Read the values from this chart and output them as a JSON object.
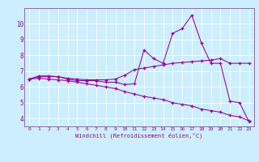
{
  "xlabel": "Windchill (Refroidissement éolien,°C)",
  "bg_color": "#cceeff",
  "line_color": "#990099",
  "grid_color": "#ffffff",
  "spine_color": "#9966aa",
  "yticks": [
    4,
    5,
    6,
    7,
    8,
    9,
    10
  ],
  "xticks": [
    0,
    1,
    2,
    3,
    4,
    5,
    6,
    7,
    8,
    9,
    10,
    11,
    12,
    13,
    14,
    15,
    16,
    17,
    18,
    19,
    20,
    21,
    22,
    23
  ],
  "ylim": [
    3.5,
    11.0
  ],
  "xlim": [
    -0.5,
    23.5
  ],
  "series1": [
    6.5,
    6.7,
    6.7,
    6.65,
    6.5,
    6.4,
    6.4,
    6.4,
    6.3,
    6.3,
    6.15,
    6.2,
    8.35,
    7.8,
    7.5,
    9.4,
    9.7,
    10.55,
    8.8,
    7.5,
    7.5,
    5.1,
    5.0,
    3.8
  ],
  "series2": [
    6.5,
    6.65,
    6.65,
    6.65,
    6.55,
    6.5,
    6.45,
    6.45,
    6.45,
    6.5,
    6.75,
    7.1,
    7.2,
    7.3,
    7.4,
    7.5,
    7.55,
    7.6,
    7.65,
    7.7,
    7.8,
    7.5,
    7.5,
    7.5
  ],
  "series3": [
    6.5,
    6.55,
    6.5,
    6.45,
    6.4,
    6.3,
    6.2,
    6.1,
    6.0,
    5.9,
    5.7,
    5.55,
    5.4,
    5.3,
    5.2,
    5.0,
    4.9,
    4.8,
    4.6,
    4.5,
    4.4,
    4.2,
    4.1,
    3.85
  ]
}
